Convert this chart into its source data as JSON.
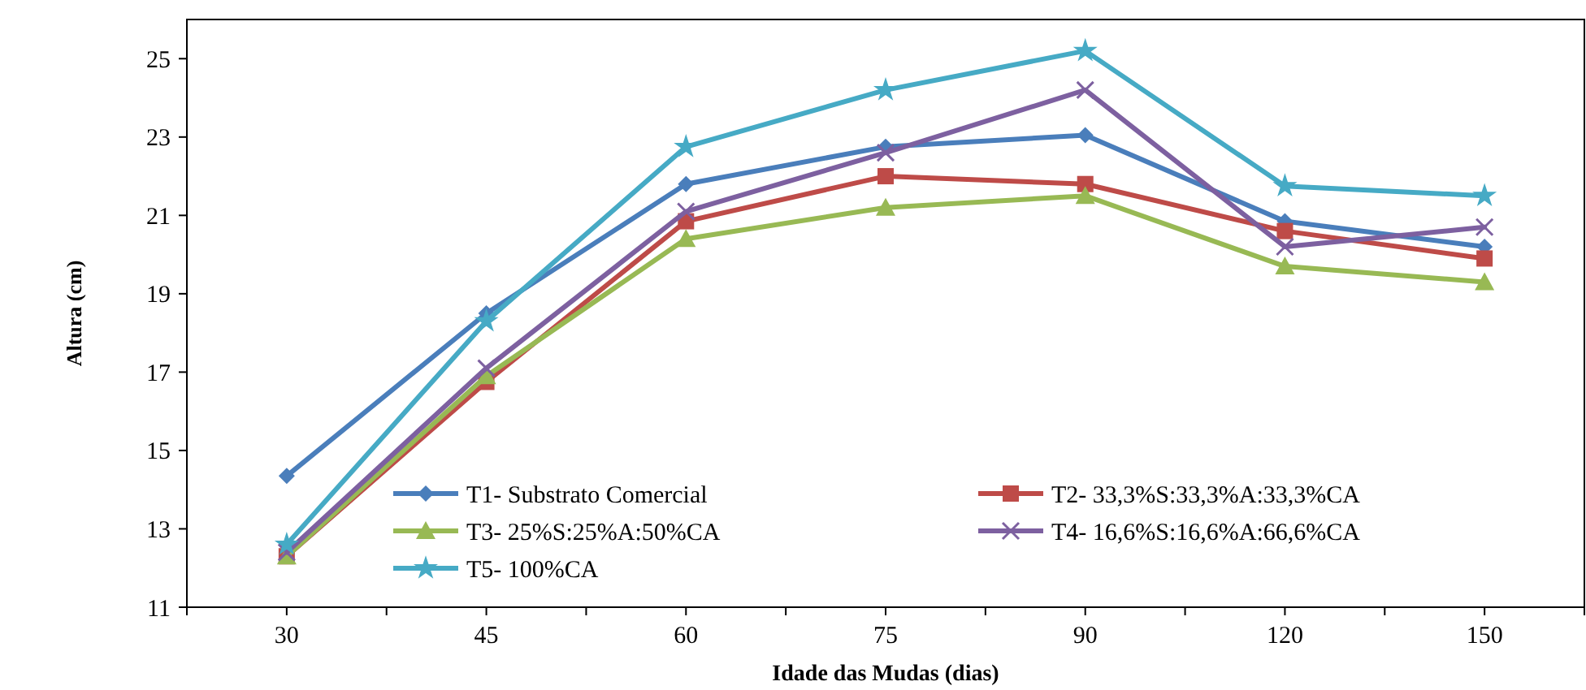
{
  "chart_data": {
    "type": "line",
    "xlabel": "Idade das Mudas (dias)",
    "ylabel": "Altura (cm)",
    "categories": [
      "30",
      "45",
      "60",
      "75",
      "90",
      "120",
      "150"
    ],
    "ylim": [
      11,
      26
    ],
    "yticks": [
      11,
      13,
      15,
      17,
      19,
      21,
      23,
      25
    ],
    "grid": false,
    "legend": "bottom",
    "series": [
      {
        "name": "T1- Substrato Comercial",
        "color": "#4a7ebb",
        "marker": "diamond",
        "values": [
          14.35,
          18.5,
          21.8,
          22.75,
          23.05,
          20.85,
          20.2
        ]
      },
      {
        "name": "T2- 33,3%S:33,3%A:33,3%CA",
        "color": "#be4b48",
        "marker": "square",
        "values": [
          12.3,
          16.75,
          20.85,
          22.0,
          21.8,
          20.6,
          19.9
        ]
      },
      {
        "name": "T3- 25%S:25%A:50%CA",
        "color": "#98b954",
        "marker": "triangle",
        "values": [
          12.3,
          16.9,
          20.4,
          21.2,
          21.5,
          19.7,
          19.3
        ]
      },
      {
        "name": "T4- 16,6%S:16,6%A:66,6%CA",
        "color": "#7d60a0",
        "marker": "cross",
        "values": [
          12.4,
          17.1,
          21.1,
          22.6,
          24.2,
          20.2,
          20.7
        ]
      },
      {
        "name": "T5- 100%CA",
        "color": "#46aac5",
        "marker": "star",
        "values": [
          12.6,
          18.3,
          22.75,
          24.2,
          25.2,
          21.75,
          21.5
        ]
      }
    ]
  }
}
